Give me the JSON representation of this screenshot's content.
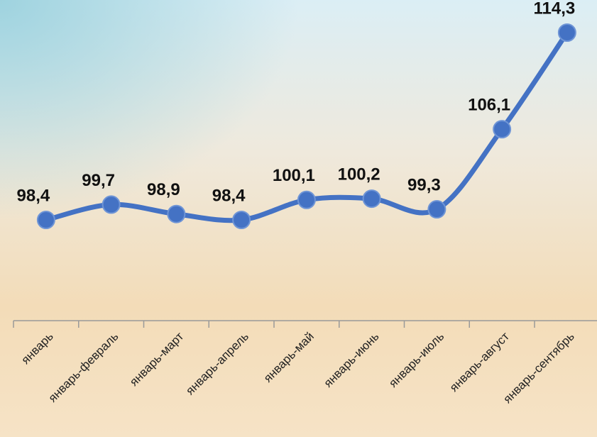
{
  "chart_data": {
    "type": "line",
    "categories": [
      "январь",
      "январь-февраль",
      "январь-март",
      "январь-апрель",
      "январь-май",
      "январь-июнь",
      "январь-июль",
      "январь-август",
      "январь-сентябрь"
    ],
    "values": [
      98.4,
      99.7,
      98.9,
      98.4,
      100.1,
      100.2,
      99.3,
      106.1,
      114.3
    ],
    "value_labels": [
      "98,4",
      "99,7",
      "98,9",
      "98,4",
      "100,1",
      "100,2",
      "99,3",
      "106,1",
      "114,3"
    ],
    "color": "#4472c4",
    "smooth": true
  }
}
